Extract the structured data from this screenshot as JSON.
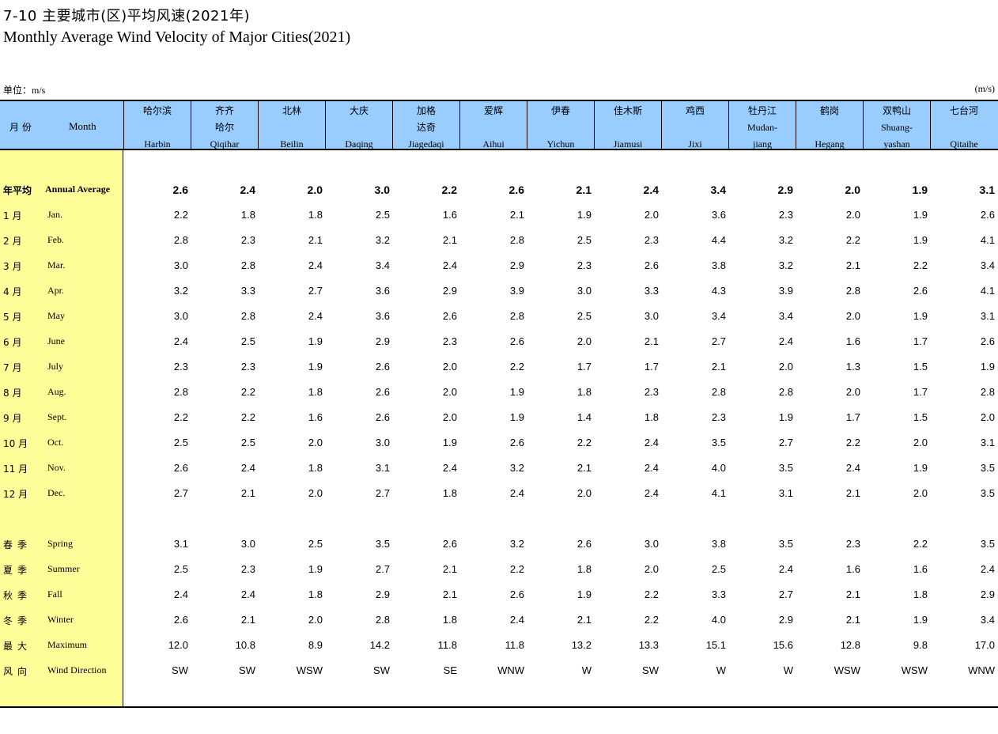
{
  "title": {
    "zh": "7-10   主要城市(区)平均风速(2021年)",
    "en": "Monthly Average Wind Velocity of Major Cities(2021)"
  },
  "unit": {
    "label_zh": "单位：",
    "label_en": "m/s",
    "right": "(m/s)"
  },
  "header": {
    "month_zh": "月 份",
    "month_en": "Month",
    "columns": [
      {
        "zh1": "哈尔滨",
        "zh2": "",
        "en1": "",
        "en2": "Harbin"
      },
      {
        "zh1": "齐齐",
        "zh2": "哈尔",
        "en1": "",
        "en2": "Qiqihar"
      },
      {
        "zh1": "北林",
        "zh2": "",
        "en1": "",
        "en2": "Beilin"
      },
      {
        "zh1": "大庆",
        "zh2": "",
        "en1": "",
        "en2": "Daqing"
      },
      {
        "zh1": "加格",
        "zh2": "达奇",
        "en1": "",
        "en2": "Jiagedaqi"
      },
      {
        "zh1": "爱辉",
        "zh2": "",
        "en1": "",
        "en2": "Aihui"
      },
      {
        "zh1": "伊春",
        "zh2": "",
        "en1": "",
        "en2": "Yichun"
      },
      {
        "zh1": "佳木斯",
        "zh2": "",
        "en1": "",
        "en2": "Jiamusi"
      },
      {
        "zh1": "鸡西",
        "zh2": "",
        "en1": "",
        "en2": "Jixi"
      },
      {
        "zh1": "牡丹江",
        "zh2": "",
        "en1": "Mudan-",
        "en2": "jiang"
      },
      {
        "zh1": "鹤岗",
        "zh2": "",
        "en1": "",
        "en2": "Hegang"
      },
      {
        "zh1": "双鸭山",
        "zh2": "",
        "en1": "Shuang-",
        "en2": "yashan"
      },
      {
        "zh1": "七台河",
        "zh2": "",
        "en1": "",
        "en2": "Qitaihe"
      }
    ]
  },
  "rows": [
    {
      "zh": "年平均",
      "en": "Annual Average",
      "bold": true,
      "values": [
        "2.6",
        "2.4",
        "2.0",
        "3.0",
        "2.2",
        "2.6",
        "2.1",
        "2.4",
        "3.4",
        "2.9",
        "2.0",
        "1.9",
        "3.1"
      ]
    },
    {
      "zh": "1 月",
      "en": "Jan.",
      "values": [
        "2.2",
        "1.8",
        "1.8",
        "2.5",
        "1.6",
        "2.1",
        "1.9",
        "2.0",
        "3.6",
        "2.3",
        "2.0",
        "1.9",
        "2.6"
      ]
    },
    {
      "zh": "2 月",
      "en": "Feb.",
      "values": [
        "2.8",
        "2.3",
        "2.1",
        "3.2",
        "2.1",
        "2.8",
        "2.5",
        "2.3",
        "4.4",
        "3.2",
        "2.2",
        "1.9",
        "4.1"
      ]
    },
    {
      "zh": "3 月",
      "en": "Mar.",
      "values": [
        "3.0",
        "2.8",
        "2.4",
        "3.4",
        "2.4",
        "2.9",
        "2.3",
        "2.6",
        "3.8",
        "3.2",
        "2.1",
        "2.2",
        "3.4"
      ]
    },
    {
      "zh": "4 月",
      "en": "Apr.",
      "values": [
        "3.2",
        "3.3",
        "2.7",
        "3.6",
        "2.9",
        "3.9",
        "3.0",
        "3.3",
        "4.3",
        "3.9",
        "2.8",
        "2.6",
        "4.1"
      ]
    },
    {
      "zh": "5 月",
      "en": "May",
      "values": [
        "3.0",
        "2.8",
        "2.4",
        "3.6",
        "2.6",
        "2.8",
        "2.5",
        "3.0",
        "3.4",
        "3.4",
        "2.0",
        "1.9",
        "3.1"
      ]
    },
    {
      "zh": "6 月",
      "en": "June",
      "values": [
        "2.4",
        "2.5",
        "1.9",
        "2.9",
        "2.3",
        "2.6",
        "2.0",
        "2.1",
        "2.7",
        "2.4",
        "1.6",
        "1.7",
        "2.6"
      ]
    },
    {
      "zh": "7 月",
      "en": "July",
      "values": [
        "2.3",
        "2.3",
        "1.9",
        "2.6",
        "2.0",
        "2.2",
        "1.7",
        "1.7",
        "2.1",
        "2.0",
        "1.3",
        "1.5",
        "1.9"
      ]
    },
    {
      "zh": "8 月",
      "en": "Aug.",
      "values": [
        "2.8",
        "2.2",
        "1.8",
        "2.6",
        "2.0",
        "1.9",
        "1.8",
        "2.3",
        "2.8",
        "2.8",
        "2.0",
        "1.7",
        "2.8"
      ]
    },
    {
      "zh": "9 月",
      "en": "Sept.",
      "values": [
        "2.2",
        "2.2",
        "1.6",
        "2.6",
        "2.0",
        "1.9",
        "1.4",
        "1.8",
        "2.3",
        "1.9",
        "1.7",
        "1.5",
        "2.0"
      ]
    },
    {
      "zh": "10 月",
      "en": "Oct.",
      "values": [
        "2.5",
        "2.5",
        "2.0",
        "3.0",
        "1.9",
        "2.6",
        "2.2",
        "2.4",
        "3.5",
        "2.7",
        "2.2",
        "2.0",
        "3.1"
      ]
    },
    {
      "zh": "11 月",
      "en": "Nov.",
      "values": [
        "2.6",
        "2.4",
        "1.8",
        "3.1",
        "2.4",
        "3.2",
        "2.1",
        "2.4",
        "4.0",
        "3.5",
        "2.4",
        "1.9",
        "3.5"
      ]
    },
    {
      "zh": "12 月",
      "en": "Dec.",
      "values": [
        "2.7",
        "2.1",
        "2.0",
        "2.7",
        "1.8",
        "2.4",
        "2.0",
        "2.4",
        "4.1",
        "3.1",
        "2.1",
        "2.0",
        "3.5"
      ]
    },
    {
      "zh": "春季",
      "en": "Spring",
      "season": true,
      "values": [
        "3.1",
        "3.0",
        "2.5",
        "3.5",
        "2.6",
        "3.2",
        "2.6",
        "3.0",
        "3.8",
        "3.5",
        "2.3",
        "2.2",
        "3.5"
      ]
    },
    {
      "zh": "夏季",
      "en": "Summer",
      "season": true,
      "values": [
        "2.5",
        "2.3",
        "1.9",
        "2.7",
        "2.1",
        "2.2",
        "1.8",
        "2.0",
        "2.5",
        "2.4",
        "1.6",
        "1.6",
        "2.4"
      ]
    },
    {
      "zh": "秋季",
      "en": "Fall",
      "season": true,
      "values": [
        "2.4",
        "2.4",
        "1.8",
        "2.9",
        "2.1",
        "2.6",
        "1.9",
        "2.2",
        "3.3",
        "2.7",
        "2.1",
        "1.8",
        "2.9"
      ]
    },
    {
      "zh": "冬季",
      "en": "Winter",
      "season": true,
      "values": [
        "2.6",
        "2.1",
        "2.0",
        "2.8",
        "1.8",
        "2.4",
        "2.1",
        "2.2",
        "4.0",
        "2.9",
        "2.1",
        "1.9",
        "3.4"
      ]
    },
    {
      "zh": "最大",
      "en": "Maximum",
      "season": true,
      "values": [
        "12.0",
        "10.8",
        "8.9",
        "14.2",
        "11.8",
        "11.8",
        "13.2",
        "13.3",
        "15.1",
        "15.6",
        "12.8",
        "9.8",
        "17.0"
      ]
    },
    {
      "zh": "风向",
      "en": "Wind Direction",
      "season": true,
      "values": [
        "SW",
        "SW",
        "WSW",
        "SW",
        "SE",
        "WNW",
        "W",
        "SW",
        "W",
        "W",
        "WSW",
        "WSW",
        "WNW"
      ]
    }
  ]
}
